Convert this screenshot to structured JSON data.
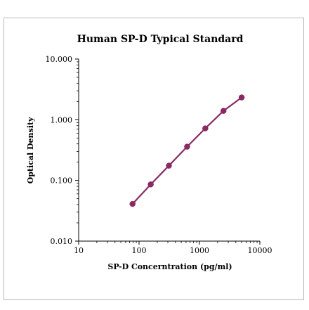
{
  "chart_data": {
    "type": "scatter",
    "title": "Human SP-D Typical Standard",
    "xlabel": "SP-D Concerntration (pg/ml)",
    "ylabel": "Optical Density",
    "xscale": "log",
    "yscale": "log",
    "xlim": [
      10,
      10000
    ],
    "ylim": [
      0.01,
      10
    ],
    "xticks": [
      10,
      100,
      1000,
      10000
    ],
    "xtick_labels": [
      "10",
      "100",
      "1000",
      "10000"
    ],
    "yticks": [
      0.01,
      0.1,
      1,
      10
    ],
    "ytick_labels": [
      "0.010",
      "0.100",
      "1.000",
      "10.000"
    ],
    "grid": false,
    "series": [
      {
        "x": [
          78,
          156,
          312,
          625,
          1250,
          2500,
          5000
        ],
        "y": [
          0.041,
          0.086,
          0.175,
          0.36,
          0.72,
          1.4,
          2.33
        ],
        "color": "#8a2a63",
        "fit_line": true
      }
    ]
  }
}
